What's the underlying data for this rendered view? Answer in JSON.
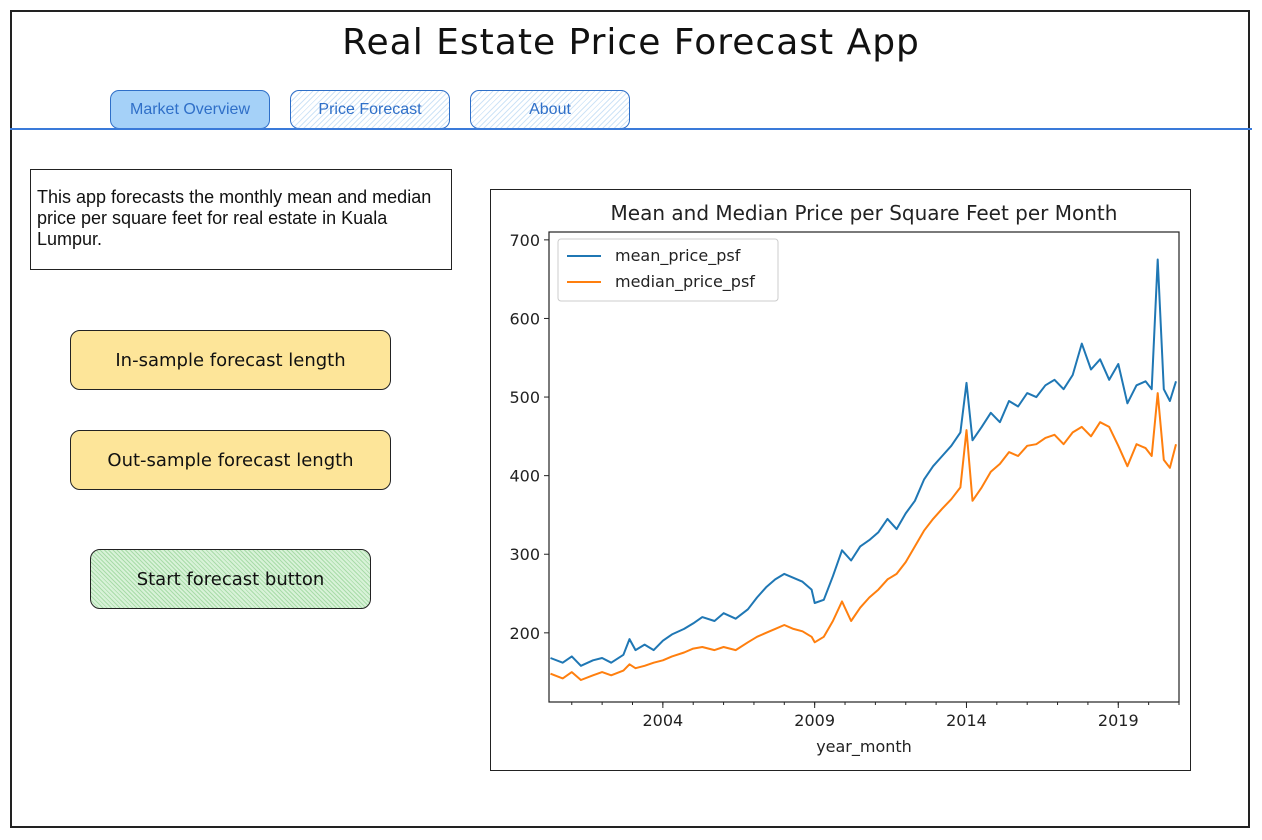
{
  "app": {
    "title": "Real Estate Price Forecast App"
  },
  "tabs": [
    {
      "label": "Market Overview",
      "active": true
    },
    {
      "label": "Price Forecast",
      "active": false
    },
    {
      "label": "About",
      "active": false
    }
  ],
  "description": "This app forecasts the monthly mean and median price per square feet for real estate in Kuala Lumpur.",
  "controls": {
    "in_sample_label": "In-sample forecast length",
    "out_sample_label": "Out-sample forecast length",
    "start_button_label": "Start forecast button"
  },
  "colors": {
    "tab_accent": "#2f6fc8",
    "tab_active_bg": "#a5d1f8",
    "input_bg": "#fde599",
    "button_bg": "#c9ebc9"
  },
  "chart_data": {
    "type": "line",
    "title": "Mean and Median Price per Square Feet per Month",
    "xlabel": "year_month",
    "ylabel": "",
    "x_ticks": [
      "2004",
      "2009",
      "2014",
      "2019"
    ],
    "y_ticks": [
      200,
      300,
      400,
      500,
      600,
      700
    ],
    "xlim": [
      2000.25,
      2021.0
    ],
    "ylim": [
      112,
      710
    ],
    "legend_position": "top-left",
    "grid": false,
    "series": [
      {
        "name": "mean_price_psf",
        "color": "#1f77b4",
        "points": [
          [
            2000.3,
            168
          ],
          [
            2000.7,
            162
          ],
          [
            2001.0,
            170
          ],
          [
            2001.3,
            158
          ],
          [
            2001.7,
            165
          ],
          [
            2002.0,
            168
          ],
          [
            2002.3,
            162
          ],
          [
            2002.7,
            172
          ],
          [
            2002.9,
            192
          ],
          [
            2003.1,
            178
          ],
          [
            2003.4,
            185
          ],
          [
            2003.7,
            178
          ],
          [
            2004.0,
            190
          ],
          [
            2004.3,
            198
          ],
          [
            2004.7,
            205
          ],
          [
            2005.0,
            212
          ],
          [
            2005.3,
            220
          ],
          [
            2005.7,
            215
          ],
          [
            2006.0,
            225
          ],
          [
            2006.4,
            218
          ],
          [
            2006.8,
            230
          ],
          [
            2007.1,
            245
          ],
          [
            2007.4,
            258
          ],
          [
            2007.7,
            268
          ],
          [
            2008.0,
            275
          ],
          [
            2008.3,
            270
          ],
          [
            2008.6,
            265
          ],
          [
            2008.9,
            255
          ],
          [
            2009.0,
            238
          ],
          [
            2009.3,
            242
          ],
          [
            2009.6,
            272
          ],
          [
            2009.9,
            305
          ],
          [
            2010.2,
            292
          ],
          [
            2010.5,
            310
          ],
          [
            2010.8,
            318
          ],
          [
            2011.1,
            328
          ],
          [
            2011.4,
            345
          ],
          [
            2011.7,
            332
          ],
          [
            2012.0,
            352
          ],
          [
            2012.3,
            368
          ],
          [
            2012.6,
            395
          ],
          [
            2012.9,
            412
          ],
          [
            2013.2,
            425
          ],
          [
            2013.5,
            438
          ],
          [
            2013.8,
            455
          ],
          [
            2014.0,
            518
          ],
          [
            2014.2,
            445
          ],
          [
            2014.5,
            462
          ],
          [
            2014.8,
            480
          ],
          [
            2015.1,
            468
          ],
          [
            2015.4,
            495
          ],
          [
            2015.7,
            488
          ],
          [
            2016.0,
            505
          ],
          [
            2016.3,
            500
          ],
          [
            2016.6,
            515
          ],
          [
            2016.9,
            522
          ],
          [
            2017.2,
            510
          ],
          [
            2017.5,
            528
          ],
          [
            2017.8,
            568
          ],
          [
            2018.1,
            535
          ],
          [
            2018.4,
            548
          ],
          [
            2018.7,
            522
          ],
          [
            2019.0,
            542
          ],
          [
            2019.3,
            492
          ],
          [
            2019.6,
            515
          ],
          [
            2019.9,
            520
          ],
          [
            2020.1,
            510
          ],
          [
            2020.3,
            675
          ],
          [
            2020.5,
            510
          ],
          [
            2020.7,
            495
          ],
          [
            2020.9,
            520
          ]
        ]
      },
      {
        "name": "median_price_psf",
        "color": "#ff7f0e",
        "points": [
          [
            2000.3,
            148
          ],
          [
            2000.7,
            142
          ],
          [
            2001.0,
            150
          ],
          [
            2001.3,
            140
          ],
          [
            2001.7,
            146
          ],
          [
            2002.0,
            150
          ],
          [
            2002.3,
            146
          ],
          [
            2002.7,
            152
          ],
          [
            2002.9,
            160
          ],
          [
            2003.1,
            155
          ],
          [
            2003.4,
            158
          ],
          [
            2003.7,
            162
          ],
          [
            2004.0,
            165
          ],
          [
            2004.3,
            170
          ],
          [
            2004.7,
            175
          ],
          [
            2005.0,
            180
          ],
          [
            2005.3,
            182
          ],
          [
            2005.7,
            178
          ],
          [
            2006.0,
            182
          ],
          [
            2006.4,
            178
          ],
          [
            2006.8,
            188
          ],
          [
            2007.1,
            195
          ],
          [
            2007.4,
            200
          ],
          [
            2007.7,
            205
          ],
          [
            2008.0,
            210
          ],
          [
            2008.3,
            205
          ],
          [
            2008.6,
            202
          ],
          [
            2008.9,
            195
          ],
          [
            2009.0,
            188
          ],
          [
            2009.3,
            195
          ],
          [
            2009.6,
            215
          ],
          [
            2009.9,
            240
          ],
          [
            2010.2,
            215
          ],
          [
            2010.5,
            232
          ],
          [
            2010.8,
            245
          ],
          [
            2011.1,
            255
          ],
          [
            2011.4,
            268
          ],
          [
            2011.7,
            275
          ],
          [
            2012.0,
            290
          ],
          [
            2012.3,
            310
          ],
          [
            2012.6,
            330
          ],
          [
            2012.9,
            345
          ],
          [
            2013.2,
            358
          ],
          [
            2013.5,
            370
          ],
          [
            2013.8,
            385
          ],
          [
            2014.0,
            458
          ],
          [
            2014.2,
            368
          ],
          [
            2014.5,
            385
          ],
          [
            2014.8,
            405
          ],
          [
            2015.1,
            415
          ],
          [
            2015.4,
            430
          ],
          [
            2015.7,
            425
          ],
          [
            2016.0,
            438
          ],
          [
            2016.3,
            440
          ],
          [
            2016.6,
            448
          ],
          [
            2016.9,
            452
          ],
          [
            2017.2,
            440
          ],
          [
            2017.5,
            455
          ],
          [
            2017.8,
            462
          ],
          [
            2018.1,
            450
          ],
          [
            2018.4,
            468
          ],
          [
            2018.7,
            462
          ],
          [
            2019.0,
            438
          ],
          [
            2019.3,
            412
          ],
          [
            2019.6,
            440
          ],
          [
            2019.9,
            435
          ],
          [
            2020.1,
            425
          ],
          [
            2020.3,
            505
          ],
          [
            2020.5,
            420
          ],
          [
            2020.7,
            410
          ],
          [
            2020.9,
            440
          ]
        ]
      }
    ]
  }
}
